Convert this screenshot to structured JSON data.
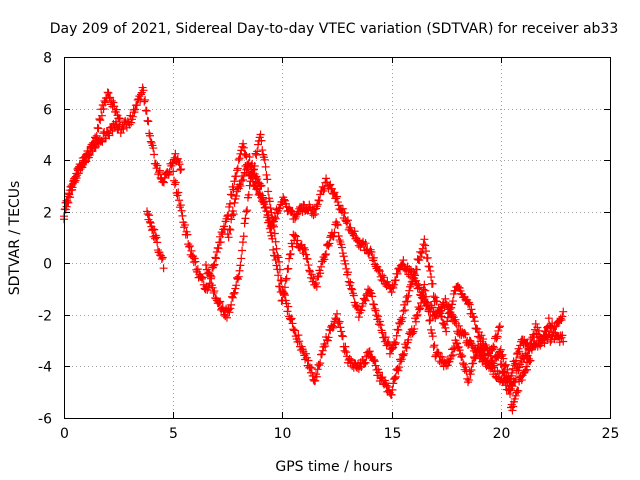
{
  "chart_data": {
    "type": "scatter",
    "title": "Day 209 of 2021, Sidereal Day-to-day VTEC variation (SDTVAR) for receiver ab33",
    "xlabel": "GPS time / hours",
    "ylabel": "SDTVAR / TECUs",
    "xlim": [
      0,
      25
    ],
    "ylim": [
      -6,
      8
    ],
    "xticks": [
      0,
      5,
      10,
      15,
      20,
      25
    ],
    "yticks": [
      -6,
      -4,
      -2,
      0,
      2,
      4,
      6,
      8
    ],
    "grid": true,
    "marker": "+",
    "series": [
      {
        "name": "SDTVAR",
        "color": "#ff0000",
        "tracks": [
          {
            "x": [
              0.0,
              0.3,
              0.6,
              1.0,
              1.3,
              1.6,
              2.0,
              2.3,
              2.6,
              3.0,
              3.3,
              3.6,
              3.9,
              4.2,
              4.5,
              4.8,
              5.1,
              5.4
            ],
            "y": [
              2.0,
              2.8,
              3.5,
              4.1,
              4.5,
              4.8,
              5.0,
              5.4,
              5.2,
              5.5,
              6.0,
              6.8,
              5.2,
              3.8,
              3.2,
              3.6,
              4.2,
              3.5
            ]
          },
          {
            "x": [
              0.0,
              0.2,
              0.5,
              0.9,
              1.3,
              1.7,
              2.0,
              2.3,
              2.6
            ],
            "y": [
              1.8,
              2.5,
              3.3,
              4.0,
              4.4,
              5.8,
              6.5,
              6.0,
              5.5
            ]
          },
          {
            "x": [
              3.8,
              4.0,
              4.2,
              4.4,
              4.6
            ],
            "y": [
              2.0,
              1.4,
              1.0,
              0.3,
              -0.1
            ]
          },
          {
            "x": [
              5.0,
              5.5,
              5.8,
              6.2,
              6.6,
              7.0,
              7.4,
              7.8,
              8.2,
              8.5,
              8.8,
              9.1,
              9.5,
              10.0,
              10.5,
              11.0,
              11.5,
              12.0,
              12.5,
              13.0,
              13.5,
              14.0,
              14.5,
              15.0,
              15.5,
              16.0,
              16.5,
              17.0,
              17.5,
              18.0,
              18.5,
              19.0,
              19.5,
              20.0,
              20.5
            ],
            "y": [
              3.5,
              1.5,
              0.5,
              -0.5,
              -1.0,
              0.5,
              1.5,
              3.2,
              4.5,
              3.5,
              3.0,
              2.5,
              1.5,
              2.5,
              1.8,
              2.2,
              2.0,
              3.2,
              2.5,
              1.5,
              0.8,
              0.5,
              -0.5,
              -1.0,
              0.0,
              -0.5,
              -1.5,
              -2.0,
              -1.5,
              -2.5,
              -3.0,
              -3.5,
              -4.0,
              -4.5,
              -5.0
            ]
          },
          {
            "x": [
              6.5,
              7.0,
              7.5,
              8.0,
              8.5,
              9.0,
              9.5,
              10.0,
              10.5,
              11.0,
              11.5,
              12.0,
              12.5,
              13.0,
              13.5,
              14.0,
              14.5,
              15.0,
              15.5,
              16.0,
              16.5,
              17.0,
              17.5,
              18.0,
              18.5,
              19.0,
              19.5,
              20.0,
              20.5,
              21.0,
              21.5,
              22.0,
              22.5,
              22.9
            ],
            "y": [
              0.0,
              -1.5,
              -2.0,
              -0.5,
              3.0,
              5.0,
              2.0,
              -1.0,
              -2.5,
              -3.5,
              -4.5,
              -3.0,
              -2.0,
              -3.8,
              -4.0,
              -3.5,
              -4.5,
              -5.0,
              -3.5,
              -2.5,
              -1.0,
              -3.5,
              -4.0,
              -3.0,
              -4.5,
              -3.2,
              -4.0,
              -3.5,
              -4.8,
              -3.6,
              -3.2,
              -3.0,
              -2.8,
              -3.0
            ]
          },
          {
            "x": [
              7.5,
              8.0,
              8.5,
              9.0,
              9.5,
              10.0,
              10.5,
              11.0,
              11.5,
              12.0,
              12.5,
              13.0,
              13.5,
              14.0,
              14.5,
              15.0,
              15.5,
              16.0,
              16.5,
              17.0,
              17.5,
              18.0,
              18.5,
              19.0,
              19.5,
              20.0
            ],
            "y": [
              1.0,
              3.0,
              4.0,
              3.0,
              1.0,
              -1.5,
              1.0,
              0.5,
              -1.0,
              0.5,
              1.5,
              -0.5,
              -2.0,
              -1.0,
              -2.5,
              -3.5,
              -2.0,
              -0.5,
              0.8,
              -1.5,
              -2.5,
              -0.8,
              -1.5,
              -2.8,
              -3.5,
              -2.5
            ]
          },
          {
            "x": [
              20.0,
              20.4,
              20.7,
              21.0,
              21.3,
              21.6,
              21.9,
              22.2,
              22.5,
              22.9
            ],
            "y": [
              -4.0,
              -4.6,
              -3.6,
              -3.0,
              -3.3,
              -2.5,
              -3.0,
              -2.3,
              -2.6,
              -1.8
            ]
          },
          {
            "x": [
              20.4,
              20.6,
              20.8,
              21.0,
              21.2,
              21.4
            ],
            "y": [
              -6.0,
              -5.3,
              -4.8,
              -4.3,
              -4.0,
              -3.6
            ]
          }
        ]
      }
    ]
  }
}
